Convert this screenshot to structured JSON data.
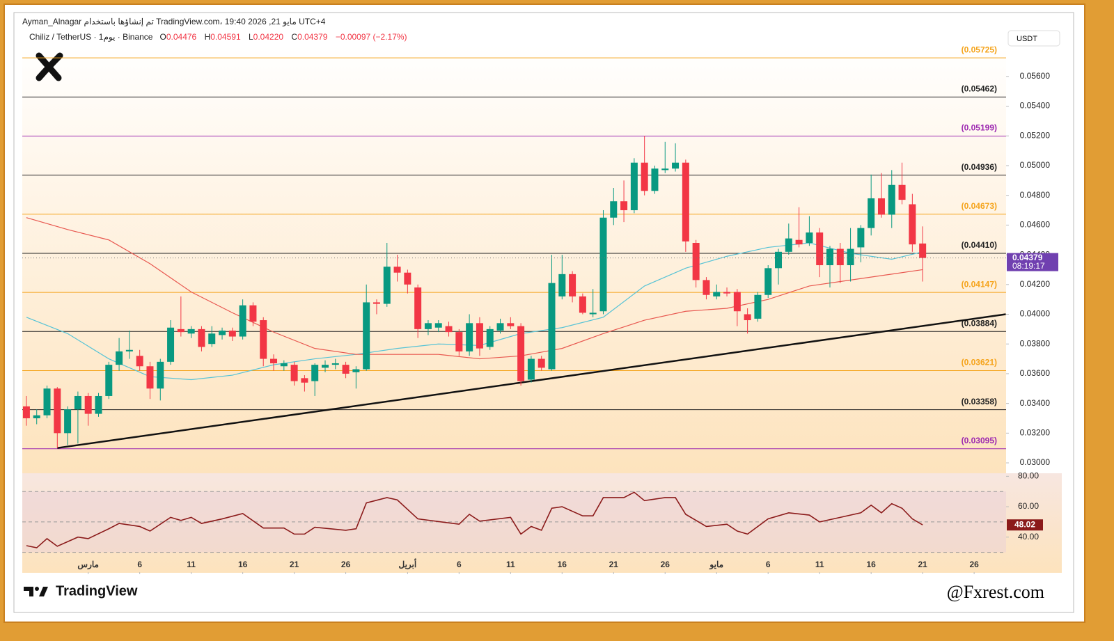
{
  "header": {
    "author_line": "Ayman_Alnagar تم إنشاؤها باستخدام TradingView.com، 19:40 2026 ,21 مايو UTC+4",
    "symbol": "Chiliz / TetherUS · 1يوم · Binance",
    "ohlc": [
      {
        "key": "O",
        "value": "0.04476"
      },
      {
        "key": "H",
        "value": "0.04591"
      },
      {
        "key": "L",
        "value": "0.04220"
      },
      {
        "key": "C",
        "value": "0.04379"
      }
    ],
    "change": "−0.00097 (−2.17%)",
    "currency": "USDT"
  },
  "chart_data": [
    {
      "type": "candlestick",
      "candles": [
        [
          0.0338,
          0.0345,
          0.0325,
          0.033
        ],
        [
          0.033,
          0.0336,
          0.0326,
          0.0332
        ],
        [
          0.0332,
          0.0352,
          0.033,
          0.035
        ],
        [
          0.035,
          0.0351,
          0.031,
          0.032
        ],
        [
          0.032,
          0.0338,
          0.0312,
          0.0336
        ],
        [
          0.0336,
          0.0348,
          0.0313,
          0.0345
        ],
        [
          0.0345,
          0.0347,
          0.0325,
          0.0333
        ],
        [
          0.0333,
          0.0347,
          0.0331,
          0.0345
        ],
        [
          0.0345,
          0.0368,
          0.0343,
          0.0366
        ],
        [
          0.0366,
          0.0384,
          0.0362,
          0.0375
        ],
        [
          0.0375,
          0.0389,
          0.037,
          0.0376
        ],
        [
          0.0372,
          0.0376,
          0.0362,
          0.0365
        ],
        [
          0.0365,
          0.0368,
          0.0343,
          0.035
        ],
        [
          0.035,
          0.037,
          0.0342,
          0.0368
        ],
        [
          0.0368,
          0.0396,
          0.0366,
          0.0391
        ],
        [
          0.039,
          0.0412,
          0.0385,
          0.0388
        ],
        [
          0.0387,
          0.0392,
          0.0384,
          0.039
        ],
        [
          0.039,
          0.0392,
          0.0375,
          0.0378
        ],
        [
          0.038,
          0.0392,
          0.0378,
          0.0387
        ],
        [
          0.0386,
          0.0391,
          0.0383,
          0.0389
        ],
        [
          0.0389,
          0.0391,
          0.0382,
          0.0385
        ],
        [
          0.0385,
          0.041,
          0.0383,
          0.0406
        ],
        [
          0.0406,
          0.0408,
          0.0392,
          0.0395
        ],
        [
          0.0396,
          0.0398,
          0.0365,
          0.037
        ],
        [
          0.037,
          0.0373,
          0.0362,
          0.0367
        ],
        [
          0.0365,
          0.0369,
          0.0362,
          0.0367
        ],
        [
          0.0366,
          0.0368,
          0.0352,
          0.0355
        ],
        [
          0.0357,
          0.0359,
          0.0348,
          0.0354
        ],
        [
          0.0355,
          0.0367,
          0.0345,
          0.0366
        ],
        [
          0.0364,
          0.0369,
          0.0361,
          0.0366
        ],
        [
          0.0366,
          0.037,
          0.0363,
          0.0367
        ],
        [
          0.0366,
          0.0368,
          0.0357,
          0.036
        ],
        [
          0.0361,
          0.0365,
          0.035,
          0.0363
        ],
        [
          0.0363,
          0.042,
          0.0362,
          0.0408
        ],
        [
          0.0408,
          0.041,
          0.04,
          0.0407
        ],
        [
          0.0407,
          0.0448,
          0.0405,
          0.0432
        ],
        [
          0.0432,
          0.044,
          0.0422,
          0.0428
        ],
        [
          0.0428,
          0.043,
          0.0414,
          0.042
        ],
        [
          0.0418,
          0.042,
          0.0384,
          0.039
        ],
        [
          0.039,
          0.0396,
          0.0386,
          0.0394
        ],
        [
          0.0391,
          0.0396,
          0.0388,
          0.0394
        ],
        [
          0.0392,
          0.0395,
          0.0385,
          0.0388
        ],
        [
          0.0388,
          0.039,
          0.0372,
          0.0375
        ],
        [
          0.0375,
          0.04,
          0.0372,
          0.0394
        ],
        [
          0.0394,
          0.0398,
          0.0372,
          0.0377
        ],
        [
          0.0378,
          0.0392,
          0.0376,
          0.039
        ],
        [
          0.0389,
          0.0397,
          0.0387,
          0.0394
        ],
        [
          0.0394,
          0.0398,
          0.039,
          0.0392
        ],
        [
          0.0392,
          0.0394,
          0.0352,
          0.0355
        ],
        [
          0.0356,
          0.0372,
          0.0354,
          0.037
        ],
        [
          0.037,
          0.0372,
          0.0362,
          0.0364
        ],
        [
          0.0363,
          0.044,
          0.0362,
          0.0421
        ],
        [
          0.0412,
          0.044,
          0.041,
          0.0427
        ],
        [
          0.0427,
          0.0429,
          0.0408,
          0.0412
        ],
        [
          0.0412,
          0.0414,
          0.04,
          0.0401
        ],
        [
          0.04,
          0.0417,
          0.0398,
          0.0401
        ],
        [
          0.0402,
          0.047,
          0.04,
          0.0465
        ],
        [
          0.0465,
          0.0485,
          0.046,
          0.0476
        ],
        [
          0.0476,
          0.049,
          0.0462,
          0.047
        ],
        [
          0.047,
          0.0505,
          0.0468,
          0.0502
        ],
        [
          0.0502,
          0.052,
          0.048,
          0.0483
        ],
        [
          0.0483,
          0.05,
          0.0481,
          0.0498
        ],
        [
          0.0497,
          0.0516,
          0.0495,
          0.0498
        ],
        [
          0.0498,
          0.0515,
          0.0496,
          0.0502
        ],
        [
          0.0502,
          0.0504,
          0.0442,
          0.0449
        ],
        [
          0.0448,
          0.045,
          0.0418,
          0.0423
        ],
        [
          0.0423,
          0.0425,
          0.041,
          0.0413
        ],
        [
          0.0412,
          0.042,
          0.041,
          0.0415
        ],
        [
          0.0415,
          0.0418,
          0.0412,
          0.0414
        ],
        [
          0.0415,
          0.0417,
          0.0392,
          0.0402
        ],
        [
          0.04,
          0.0404,
          0.0387,
          0.0396
        ],
        [
          0.0397,
          0.0415,
          0.0395,
          0.0413
        ],
        [
          0.0413,
          0.0433,
          0.0411,
          0.0431
        ],
        [
          0.0431,
          0.0444,
          0.042,
          0.0442
        ],
        [
          0.0442,
          0.0461,
          0.044,
          0.0451
        ],
        [
          0.045,
          0.0472,
          0.0445,
          0.0447
        ],
        [
          0.0448,
          0.0466,
          0.0446,
          0.0455
        ],
        [
          0.0455,
          0.0458,
          0.0425,
          0.0433
        ],
        [
          0.0433,
          0.0446,
          0.0418,
          0.0444
        ],
        [
          0.0444,
          0.0448,
          0.0421,
          0.0433
        ],
        [
          0.0433,
          0.0458,
          0.0422,
          0.0444
        ],
        [
          0.0445,
          0.046,
          0.0435,
          0.0458
        ],
        [
          0.0458,
          0.0494,
          0.0453,
          0.0478
        ],
        [
          0.0478,
          0.0495,
          0.0465,
          0.0467
        ],
        [
          0.0467,
          0.0497,
          0.0458,
          0.0487
        ],
        [
          0.0487,
          0.0502,
          0.0474,
          0.0477
        ],
        [
          0.0474,
          0.0481,
          0.0442,
          0.0447
        ],
        [
          0.04476,
          0.04591,
          0.0422,
          0.04379
        ]
      ],
      "colors": {
        "up": "#089981",
        "down": "#f23645"
      },
      "xlim": [
        -0.4,
        95.1
      ],
      "xticks": [
        {
          "value": 6,
          "label": "مارس"
        },
        {
          "value": 11,
          "label": "6"
        },
        {
          "value": 16,
          "label": "11"
        },
        {
          "value": 21,
          "label": "16"
        },
        {
          "value": 26,
          "label": "21"
        },
        {
          "value": 31,
          "label": "26"
        },
        {
          "value": 37,
          "label": "أبريل"
        },
        {
          "value": 42,
          "label": "6"
        },
        {
          "value": 47,
          "label": "11"
        },
        {
          "value": 52,
          "label": "16"
        },
        {
          "value": 57,
          "label": "21"
        },
        {
          "value": 62,
          "label": "26"
        },
        {
          "value": 67,
          "label": "مايو"
        },
        {
          "value": 72,
          "label": "6"
        },
        {
          "value": 77,
          "label": "11"
        },
        {
          "value": 82,
          "label": "16"
        },
        {
          "value": 87,
          "label": "21"
        },
        {
          "value": 92,
          "label": "26"
        }
      ],
      "ylim": [
        0.0293,
        0.0581
      ],
      "yticks": [
        {
          "value": 0.03,
          "label": "0.03000"
        },
        {
          "value": 0.032,
          "label": "0.03200"
        },
        {
          "value": 0.034,
          "label": "0.03400"
        },
        {
          "value": 0.036,
          "label": "0.03600"
        },
        {
          "value": 0.038,
          "label": "0.03800"
        },
        {
          "value": 0.04,
          "label": "0.04000"
        },
        {
          "value": 0.042,
          "label": "0.04200"
        },
        {
          "value": 0.044,
          "label": "0.04400"
        },
        {
          "value": 0.046,
          "label": "0.04600"
        },
        {
          "value": 0.048,
          "label": "0.04800"
        },
        {
          "value": 0.05,
          "label": "0.05000"
        },
        {
          "value": 0.052,
          "label": "0.05200"
        },
        {
          "value": 0.054,
          "label": "0.05400"
        },
        {
          "value": 0.056,
          "label": "0.05600"
        }
      ],
      "moving_averages": [
        {
          "color": "#56c3d6",
          "x": [
            0,
            4,
            8,
            12,
            16,
            20,
            24,
            28,
            32,
            36,
            40,
            44,
            48,
            52,
            56,
            60,
            64,
            68,
            72,
            76,
            80,
            84,
            87
          ],
          "values": [
            0.0398,
            0.0387,
            0.037,
            0.0358,
            0.0356,
            0.0359,
            0.0366,
            0.037,
            0.0373,
            0.0377,
            0.038,
            0.0379,
            0.0387,
            0.0391,
            0.0398,
            0.0419,
            0.0431,
            0.0439,
            0.0445,
            0.0448,
            0.0441,
            0.0437,
            0.0442
          ]
        },
        {
          "color": "#e8574f",
          "x": [
            0,
            4,
            8,
            12,
            16,
            20,
            24,
            28,
            32,
            36,
            40,
            44,
            48,
            52,
            56,
            60,
            64,
            68,
            72,
            76,
            80,
            84,
            87
          ],
          "values": [
            0.0465,
            0.0457,
            0.045,
            0.0434,
            0.0415,
            0.0401,
            0.0388,
            0.0377,
            0.0373,
            0.0373,
            0.0373,
            0.037,
            0.0372,
            0.0377,
            0.0387,
            0.0396,
            0.0402,
            0.0404,
            0.041,
            0.0419,
            0.0423,
            0.0427,
            0.043
          ]
        }
      ],
      "levels": [
        {
          "value": 0.05725,
          "label": "(0.05725)",
          "color": "#f5a31a"
        },
        {
          "value": 0.05462,
          "label": "(0.05462)",
          "color": "#222222"
        },
        {
          "value": 0.05199,
          "label": "(0.05199)",
          "color": "#9c27b0"
        },
        {
          "value": 0.04936,
          "label": "(0.04936)",
          "color": "#222222"
        },
        {
          "value": 0.04673,
          "label": "(0.04673)",
          "color": "#f5a31a"
        },
        {
          "value": 0.0441,
          "label": "(0.04410)",
          "color": "#222222"
        },
        {
          "value": 0.04147,
          "label": "(0.04147)",
          "color": "#f5a31a"
        },
        {
          "value": 0.03884,
          "label": "(0.03884)",
          "color": "#222222"
        },
        {
          "value": 0.03621,
          "label": "(0.03621)",
          "color": "#f5a31a"
        },
        {
          "value": 0.03358,
          "label": "(0.03358)",
          "color": "#222222"
        },
        {
          "value": 0.03095,
          "label": "(0.03095)",
          "color": "#9c27b0"
        }
      ],
      "trendline": {
        "x": [
          3,
          95.07
        ],
        "values": [
          0.031,
          0.04
        ]
      },
      "last_price": {
        "value": 0.04379,
        "countdown": "08:19:17",
        "color": "#7040b0"
      }
    },
    {
      "type": "line",
      "color": "#8b1a1a",
      "x": [
        0,
        1,
        2,
        3,
        5,
        6,
        8,
        9,
        11,
        12,
        14,
        15,
        16,
        17,
        19,
        21,
        23,
        25,
        26,
        27,
        28,
        31,
        32,
        33,
        35,
        36,
        38,
        42,
        43,
        44,
        47,
        48,
        49,
        50,
        51,
        52,
        54,
        55,
        56,
        58,
        59,
        60,
        62,
        63,
        64,
        66,
        68,
        69,
        70,
        72,
        74,
        76,
        77,
        79,
        81,
        82,
        83,
        84,
        85,
        86,
        87
      ],
      "values": [
        34.4,
        33,
        39,
        34,
        40,
        39,
        45.5,
        49,
        47,
        44,
        53,
        51,
        53,
        49,
        52,
        55.5,
        46,
        46,
        42,
        42,
        46.5,
        44.5,
        45.5,
        62.5,
        66,
        64.5,
        52,
        48.5,
        55,
        50.5,
        53,
        42,
        47,
        44.5,
        59,
        60,
        54,
        54,
        66,
        66,
        69.5,
        64,
        66,
        66,
        55,
        47,
        48.5,
        44,
        42,
        52,
        56,
        54.5,
        50,
        53,
        56,
        61,
        56,
        62,
        59,
        52,
        48.02
      ],
      "xlim": [
        -0.4,
        95.1
      ],
      "ylim": [
        17,
        82
      ],
      "yticks": [
        {
          "value": 40,
          "label": "40.00"
        },
        {
          "value": 60,
          "label": "60.00"
        },
        {
          "value": 80,
          "label": "80.00"
        }
      ],
      "bands": [
        30,
        50,
        70
      ]
    }
  ],
  "footer": {
    "brand": "TradingView",
    "watermark": "@Fxrest.com"
  }
}
